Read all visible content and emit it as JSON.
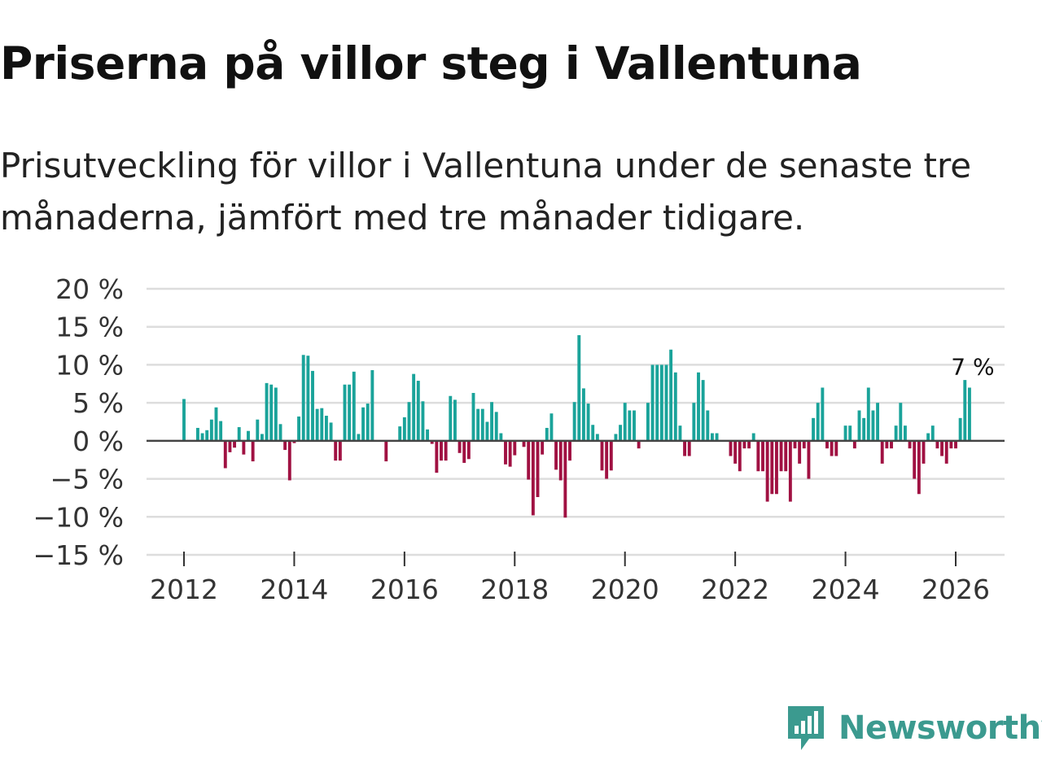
{
  "header": {
    "title": "Priserna på villor steg i Vallentuna",
    "subtitle": "Prisutveckling för villor i Vallentuna under de senaste tre månaderna, jämfört med tre månader tidigare."
  },
  "brand": {
    "name": "Newsworthy",
    "color": "#3b9a8f"
  },
  "chart_data": {
    "type": "bar",
    "title": "Priserna på villor steg i Vallentuna",
    "subtitle": "Prisutveckling för villor i Vallentuna under de senaste tre månaderna, jämfört med tre månader tidigare.",
    "xlabel": "",
    "ylabel": "",
    "ylim": [
      -15,
      20
    ],
    "yticks": [
      20,
      15,
      10,
      5,
      0,
      -5,
      -10,
      -15
    ],
    "ytick_labels": [
      "20 %",
      "15 %",
      "10 %",
      "5 %",
      "0 %",
      "−5 %",
      "−10 %",
      "−15 %"
    ],
    "xticks": [
      2012,
      2014,
      2016,
      2018,
      2020,
      2022,
      2024,
      2026
    ],
    "xtick_labels": [
      "2012",
      "2014",
      "2016",
      "2018",
      "2020",
      "2022",
      "2024",
      "2026"
    ],
    "start": "2012-01",
    "frequency": "monthly",
    "colors": {
      "positive": "#1aa39a",
      "negative": "#a01142",
      "grid": "#dddddd",
      "zero_line": "#444444"
    },
    "last_label": "7 %",
    "values": [
      5.5,
      0,
      0,
      1.7,
      1.0,
      1.4,
      2.8,
      4.4,
      2.6,
      -3.6,
      -1.5,
      -0.9,
      1.8,
      -1.8,
      1.3,
      -2.7,
      2.8,
      0.9,
      7.6,
      7.4,
      7.0,
      2.2,
      -1.2,
      -5.2,
      -0.3,
      3.2,
      11.3,
      11.2,
      9.2,
      4.2,
      4.3,
      3.3,
      2.4,
      -2.6,
      -2.6,
      7.4,
      7.4,
      9.1,
      0.9,
      4.4,
      4.9,
      9.3,
      0,
      0,
      -2.7,
      0,
      0,
      1.9,
      3.1,
      5.1,
      8.8,
      7.9,
      5.2,
      1.5,
      -0.4,
      -4.2,
      -2.6,
      -2.6,
      5.9,
      5.4,
      -1.6,
      -2.9,
      -2.4,
      6.3,
      4.2,
      4.2,
      2.5,
      5.1,
      3.8,
      1.0,
      -3.1,
      -3.4,
      -1.9,
      0,
      -0.8,
      -5.1,
      -9.8,
      -7.4,
      -1.8,
      1.7,
      3.6,
      -3.8,
      -5.2,
      -10.1,
      -2.6,
      5.1,
      13.9,
      6.9,
      4.9,
      2.1,
      0.9,
      -3.9,
      -5.0,
      -3.9,
      0.9,
      2.1,
      5.0,
      4.0,
      4.0,
      -1.0,
      0,
      5.0,
      10.0,
      10.0,
      10.0,
      10.0,
      12.0,
      9.0,
      2.0,
      -2.0,
      -2.0,
      5.0,
      9.0,
      8.0,
      4.0,
      1.0,
      1.0,
      0,
      0,
      -2.0,
      -3.0,
      -4.0,
      -1.0,
      -1.0,
      1.0,
      -4.0,
      -4.0,
      -8.0,
      -7.0,
      -7.0,
      -4.0,
      -4.0,
      -8.0,
      -1.0,
      -3.0,
      -1.0,
      -5.0,
      3.0,
      5.0,
      7.0,
      -1.0,
      -2.0,
      -2.0,
      0,
      2.0,
      2.0,
      -1.0,
      4.0,
      3.0,
      7.0,
      4.0,
      5.0,
      -3.0,
      -1.0,
      -1.0,
      2.0,
      5.0,
      2.0,
      -1.0,
      -5.0,
      -7.0,
      -3.0,
      1.0,
      2.0,
      -1.0,
      -2.0,
      -3.0,
      -1.0,
      -1.0,
      3.0,
      8.0,
      7.0
    ]
  }
}
